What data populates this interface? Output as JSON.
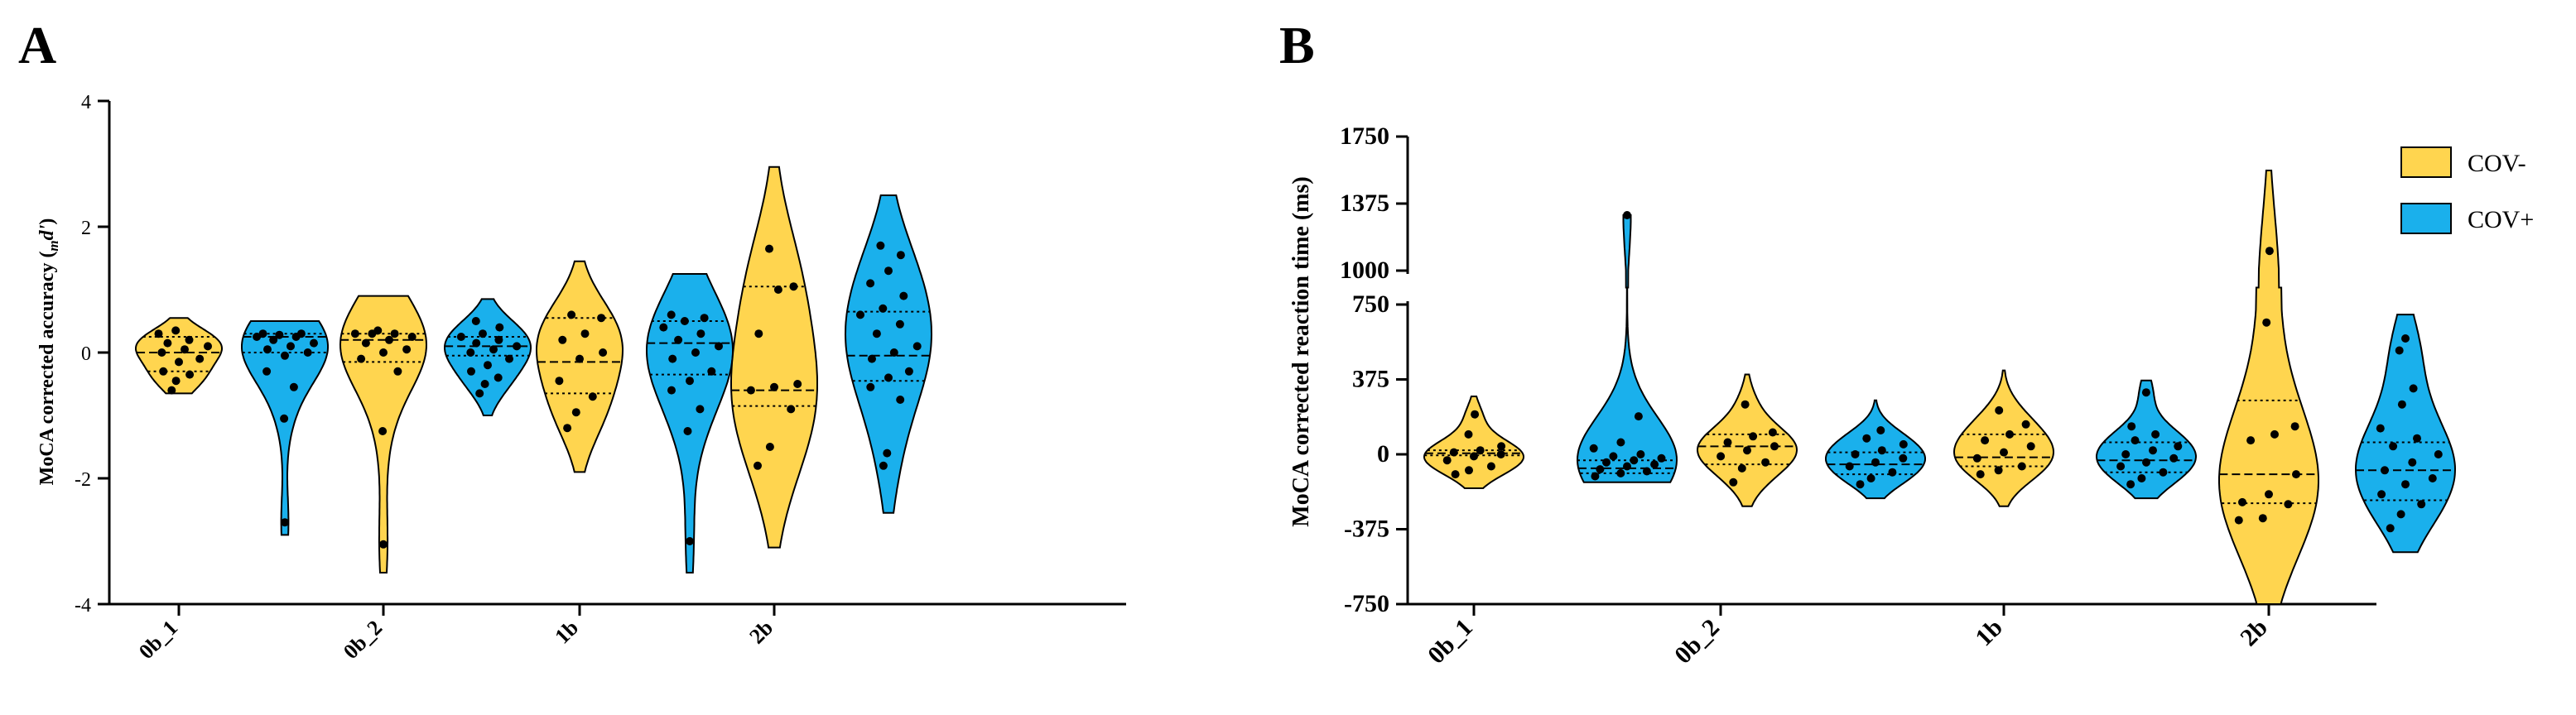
{
  "chart_data": [
    {
      "panel": "A",
      "type": "violin",
      "ylabel": "MoCA corrected accuracy (md')",
      "ylabel_main": "MoCA corrected accuracy (",
      "ylabel_sub": "m",
      "ylabel_var": "d'",
      "ylabel_end": ")",
      "ylim": [
        -4,
        4
      ],
      "yticks": [
        4,
        2,
        0,
        -2,
        -4
      ],
      "categories": [
        "0b_1",
        "0b_2",
        "1b",
        "2b"
      ],
      "groups": [
        {
          "category": "0b_1",
          "series": "COV-",
          "points": [
            -0.6,
            -0.45,
            -0.35,
            -0.3,
            -0.15,
            -0.1,
            0.0,
            0.05,
            0.1,
            0.15,
            0.2,
            0.3,
            0.35
          ],
          "q1": -0.3,
          "median": 0.0,
          "q3": 0.25,
          "min": -0.65,
          "max": 0.55
        },
        {
          "category": "0b_1",
          "series": "COV+",
          "points": [
            -2.7,
            -1.05,
            -0.55,
            -0.3,
            -0.05,
            0.0,
            0.05,
            0.1,
            0.15,
            0.2,
            0.25,
            0.25,
            0.28,
            0.3,
            0.3
          ],
          "q1": 0.0,
          "median": 0.25,
          "q3": 0.3,
          "min": -2.9,
          "max": 0.5
        },
        {
          "category": "0b_2",
          "series": "COV-",
          "points": [
            -3.05,
            -1.25,
            -0.3,
            -0.1,
            0.0,
            0.05,
            0.15,
            0.2,
            0.25,
            0.3,
            0.3,
            0.3,
            0.35
          ],
          "q1": -0.15,
          "median": 0.2,
          "q3": 0.3,
          "min": -3.5,
          "max": 0.9
        },
        {
          "category": "0b_2",
          "series": "COV+",
          "points": [
            -0.65,
            -0.5,
            -0.4,
            -0.3,
            -0.2,
            -0.1,
            0.0,
            0.05,
            0.1,
            0.15,
            0.2,
            0.25,
            0.3,
            0.4,
            0.5
          ],
          "q1": -0.05,
          "median": 0.1,
          "q3": 0.25,
          "min": -1.0,
          "max": 0.85
        },
        {
          "category": "1b",
          "series": "COV-",
          "points": [
            -1.2,
            -0.95,
            -0.7,
            -0.45,
            -0.1,
            0.0,
            0.2,
            0.3,
            0.55,
            0.6
          ],
          "q1": -0.65,
          "median": -0.15,
          "q3": 0.55,
          "min": -1.9,
          "max": 1.45
        },
        {
          "category": "1b",
          "series": "COV+",
          "points": [
            -3.0,
            -1.25,
            -0.9,
            -0.6,
            -0.45,
            -0.3,
            -0.1,
            0.0,
            0.1,
            0.2,
            0.3,
            0.4,
            0.5,
            0.55,
            0.6
          ],
          "q1": -0.35,
          "median": 0.15,
          "q3": 0.5,
          "min": -3.5,
          "max": 1.25
        },
        {
          "category": "2b",
          "series": "COV-",
          "points": [
            -1.8,
            -1.5,
            -0.9,
            -0.6,
            -0.55,
            -0.5,
            0.3,
            1.0,
            1.05,
            1.65
          ],
          "q1": -0.85,
          "median": -0.6,
          "q3": 1.05,
          "min": -3.1,
          "max": 2.95
        },
        {
          "category": "2b",
          "series": "COV+",
          "points": [
            -1.8,
            -1.6,
            -0.75,
            -0.55,
            -0.4,
            -0.3,
            -0.1,
            0.0,
            0.1,
            0.3,
            0.45,
            0.6,
            0.7,
            0.9,
            1.1,
            1.3,
            1.55,
            1.7
          ],
          "q1": -0.45,
          "median": -0.05,
          "q3": 0.65,
          "min": -2.55,
          "max": 2.5
        }
      ]
    },
    {
      "panel": "B",
      "type": "violin",
      "ylabel": "MoCA corrected reaction time (ms)",
      "ylim": [
        -750,
        1750
      ],
      "axis_break": [
        750,
        1000
      ],
      "yticks": [
        1750,
        1375,
        1000,
        750,
        375,
        0,
        -375,
        -750
      ],
      "categories": [
        "0b_1",
        "0b_2",
        "1b",
        "2b"
      ],
      "groups": [
        {
          "category": "0b_1",
          "series": "COV-",
          "points": [
            -100,
            -80,
            -60,
            -30,
            -10,
            0,
            10,
            20,
            40,
            100,
            200
          ],
          "q1": -5,
          "median": 5,
          "q3": 20,
          "min": -170,
          "max": 290
        },
        {
          "category": "0b_1",
          "series": "COV+",
          "points": [
            -110,
            -95,
            -85,
            -75,
            -60,
            -50,
            -40,
            -30,
            -20,
            -10,
            0,
            30,
            60,
            190,
            1310
          ],
          "q1": -95,
          "median": -70,
          "q3": -30,
          "min": -140,
          "max": 1310
        },
        {
          "category": "0b_2",
          "series": "COV-",
          "points": [
            -140,
            -70,
            -40,
            -10,
            20,
            40,
            60,
            90,
            110,
            250
          ],
          "q1": -50,
          "median": 40,
          "q3": 100,
          "min": -260,
          "max": 400
        },
        {
          "category": "0b_2",
          "series": "COV+",
          "points": [
            -150,
            -120,
            -90,
            -60,
            -40,
            -20,
            0,
            20,
            50,
            80,
            120
          ],
          "q1": -100,
          "median": -50,
          "q3": 10,
          "min": -220,
          "max": 270
        },
        {
          "category": "1b",
          "series": "COV-",
          "points": [
            -100,
            -80,
            -60,
            -20,
            10,
            40,
            70,
            100,
            150,
            220
          ],
          "q1": -60,
          "median": -15,
          "q3": 100,
          "min": -260,
          "max": 420
        },
        {
          "category": "1b",
          "series": "COV+",
          "points": [
            -150,
            -120,
            -90,
            -60,
            -40,
            -20,
            0,
            20,
            40,
            70,
            100,
            140,
            310
          ],
          "q1": -90,
          "median": -30,
          "q3": 60,
          "min": -220,
          "max": 370
        },
        {
          "category": "2b",
          "series": "COV-",
          "points": [
            -330,
            -320,
            -250,
            -240,
            -200,
            -100,
            70,
            100,
            140,
            660,
            1110
          ],
          "q1": -245,
          "median": -100,
          "q3": 270,
          "min": -750,
          "max": 1560
        },
        {
          "category": "2b",
          "series": "COV+",
          "points": [
            -370,
            -300,
            -250,
            -200,
            -150,
            -120,
            -80,
            -40,
            0,
            40,
            80,
            130,
            250,
            330,
            520,
            580
          ],
          "q1": -230,
          "median": -80,
          "q3": 60,
          "min": -490,
          "max": 700
        }
      ]
    }
  ],
  "panels": {
    "a": "A",
    "b": "B"
  },
  "legend": [
    {
      "label": "COV-",
      "color": "#FFD54F"
    },
    {
      "label": "COV+",
      "color": "#1AB0EC"
    }
  ],
  "colors": {
    "cov_neg": "#FFD54F",
    "cov_pos": "#1AB0EC"
  }
}
